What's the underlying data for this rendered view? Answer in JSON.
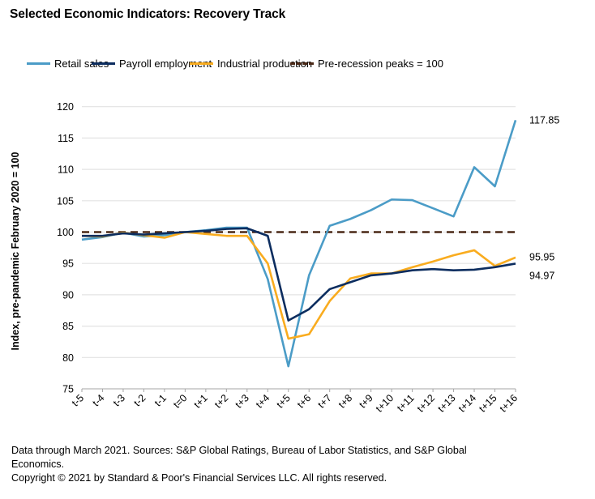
{
  "chart_data": {
    "type": "line",
    "title": "Selected Economic Indicators: Recovery Track",
    "xlabel": "",
    "ylabel": "Index, pre-pandemic February 2020 = 100",
    "ylim": [
      75,
      120
    ],
    "yticks": [
      75,
      80,
      85,
      90,
      95,
      100,
      105,
      110,
      115,
      120
    ],
    "grid": true,
    "legend_position": "top",
    "x": [
      "t-5",
      "t-4",
      "t-3",
      "t-2",
      "t-1",
      "t=0",
      "t+1",
      "t+2",
      "t+3",
      "t+4",
      "t+5",
      "t+6",
      "t+7",
      "t+8",
      "t+9",
      "t+10",
      "t+11",
      "t+12",
      "t+13",
      "t+14",
      "t+15",
      "t+16"
    ],
    "series": [
      {
        "name": "Retail sales",
        "color": "#4b9cc7",
        "style": "solid",
        "values": [
          98.8,
          99.2,
          99.9,
          99.3,
          99.5,
          100.0,
          100.3,
          100.7,
          100.7,
          92.5,
          78.6,
          93.1,
          101.0,
          102.1,
          103.5,
          105.2,
          105.1,
          103.8,
          102.5,
          110.35,
          107.3,
          117.85
        ],
        "end_label": "117.85"
      },
      {
        "name": "Payroll employment",
        "color": "#0c2d5f",
        "style": "solid",
        "values": [
          99.4,
          99.4,
          99.8,
          99.6,
          99.8,
          100.0,
          100.2,
          100.5,
          100.6,
          99.4,
          85.9,
          87.7,
          90.9,
          92.0,
          93.1,
          93.4,
          93.9,
          94.1,
          93.9,
          94.0,
          94.4,
          94.97
        ],
        "end_label": "94.97"
      },
      {
        "name": "Industrial production",
        "color": "#f9ac1f",
        "style": "solid",
        "values": [
          99.4,
          99.3,
          99.9,
          99.5,
          99.1,
          100.0,
          99.7,
          99.4,
          99.4,
          95.0,
          83.0,
          83.7,
          89.0,
          92.6,
          93.4,
          93.4,
          94.4,
          95.3,
          96.3,
          97.1,
          94.6,
          95.95
        ],
        "end_label": "95.95"
      },
      {
        "name": "Pre-recession peaks = 100",
        "color": "#4a2816",
        "style": "dashed",
        "values": [
          100,
          100,
          100,
          100,
          100,
          100,
          100,
          100,
          100,
          100,
          100,
          100,
          100,
          100,
          100,
          100,
          100,
          100,
          100,
          100,
          100,
          100
        ]
      }
    ]
  },
  "footnote": {
    "line1": "Data through March 2021. Sources: S&P Global Ratings, Bureau of Labor Statistics, and S&P Global",
    "line2": "Economics.",
    "line3": "Copyright © 2021 by Standard & Poor's Financial Services LLC. All rights reserved."
  }
}
